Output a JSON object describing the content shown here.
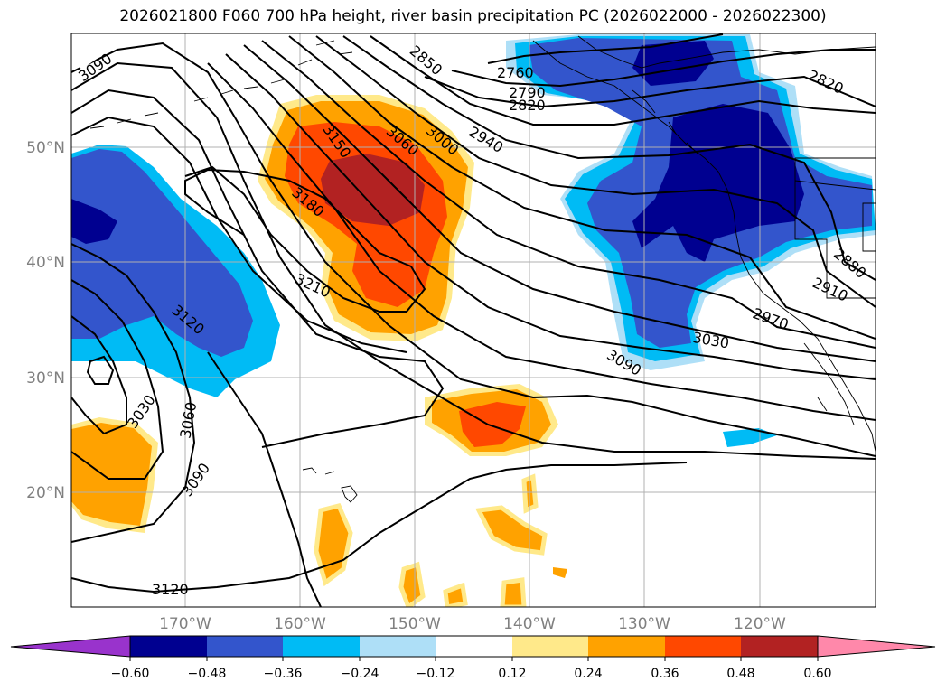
{
  "title": "2026021800 F060 700 hPa height, river basin precipitation PC (2026022000 - 2026022300)",
  "lon_labels": [
    "170°W",
    "160°W",
    "150°W",
    "140°W",
    "130°W",
    "120°W"
  ],
  "lat_labels": [
    "50°N",
    "40°N",
    "30°N",
    "20°N"
  ],
  "contour_labels": [
    "3090",
    "2850",
    "2760",
    "2790",
    "2820",
    "2820",
    "3150",
    "3060",
    "3000",
    "2940",
    "3180",
    "3210",
    "3120",
    "3030",
    "3060",
    "3090",
    "3120",
    "2880",
    "2910",
    "2970",
    "3030",
    "3090"
  ],
  "colorbar": {
    "ticks": [
      "−0.60",
      "−0.48",
      "−0.36",
      "−0.24",
      "−0.12",
      "0.12",
      "0.24",
      "0.36",
      "0.48",
      "0.60"
    ],
    "colors": [
      "#9933cc",
      "#000090",
      "#3355cc",
      "#00bbf5",
      "#aedff7",
      "#ffffff",
      "#ffe98a",
      "#ffa200",
      "#ff4800",
      "#b22222",
      "#ff88aa"
    ]
  },
  "fill_colors": {
    "neg_weak": "#aedff7",
    "neg_mid": "#00bbf5",
    "neg_strong": "#3355cc",
    "neg_max": "#000090",
    "pos_weak": "#ffe98a",
    "pos_mid": "#ffa200",
    "pos_strong": "#ff4800",
    "pos_max": "#b22222"
  }
}
